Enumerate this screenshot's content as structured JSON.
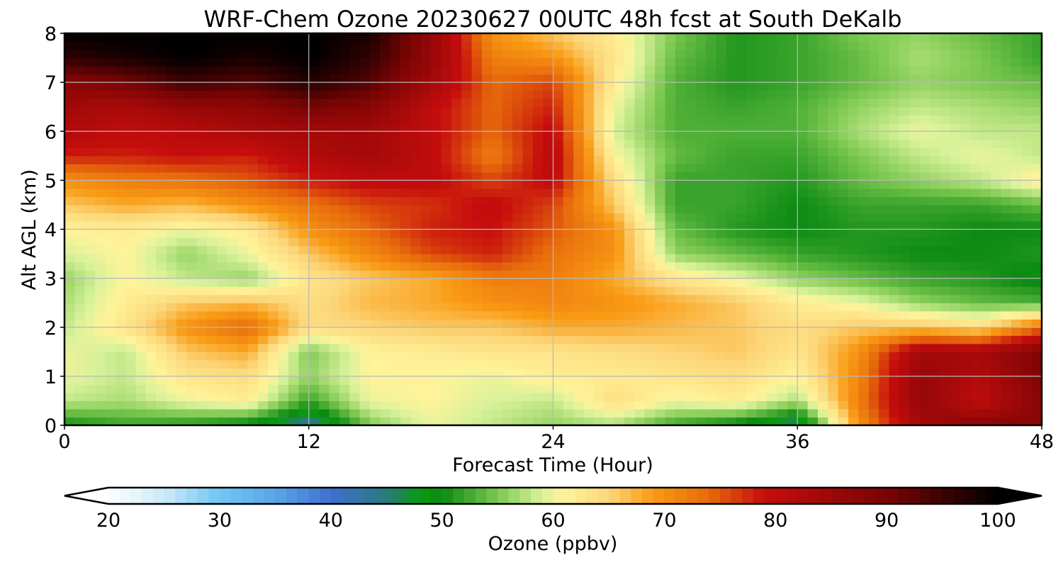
{
  "chart_data": {
    "type": "heatmap",
    "title": "WRF-Chem Ozone  20230627 00UTC 48h fcst at South DeKalb",
    "xlabel": "Forecast Time (Hour)",
    "ylabel": "Alt AGL (km)",
    "xlim": [
      0,
      48
    ],
    "ylim": [
      0,
      8
    ],
    "x_ticks": [
      0,
      12,
      24,
      36,
      48
    ],
    "y_ticks": [
      0,
      1,
      2,
      3,
      4,
      5,
      6,
      7,
      8
    ],
    "grid": true,
    "x": [
      0,
      3,
      6,
      9,
      12,
      15,
      18,
      21,
      24,
      27,
      30,
      33,
      36,
      39,
      42,
      45,
      48
    ],
    "y": [
      0,
      0.5,
      1,
      1.5,
      2,
      2.5,
      3,
      3.5,
      4,
      4.5,
      5,
      5.5,
      6,
      6.5,
      7,
      7.5,
      8
    ],
    "values": [
      [
        50,
        52,
        51,
        49,
        43,
        55,
        60,
        58,
        56,
        57,
        52,
        49,
        44,
        70,
        84,
        88,
        88
      ],
      [
        58,
        57,
        60,
        62,
        52,
        60,
        61,
        59,
        58,
        64,
        60,
        62,
        57,
        72,
        86,
        80,
        88
      ],
      [
        60,
        58,
        63,
        64,
        56,
        61,
        61,
        60,
        62,
        62,
        63,
        64,
        61,
        71,
        86,
        82,
        89
      ],
      [
        60,
        58,
        66,
        68,
        55,
        61,
        62,
        63,
        63,
        64,
        65,
        66,
        63,
        70,
        84,
        84,
        89
      ],
      [
        58,
        63,
        70,
        74,
        64,
        65,
        66,
        66,
        68,
        68,
        67,
        66,
        64,
        66,
        66,
        64,
        74
      ],
      [
        57,
        62,
        66,
        67,
        64,
        67,
        68,
        70,
        71,
        70,
        68,
        66,
        62,
        60,
        56,
        54,
        53
      ],
      [
        56,
        61,
        58,
        56,
        63,
        66,
        68,
        72,
        72,
        68,
        63,
        60,
        56,
        54,
        52,
        51,
        49
      ],
      [
        59,
        61,
        56,
        60,
        66,
        71,
        76,
        78,
        73,
        70,
        56,
        54,
        52,
        51,
        50,
        50,
        51
      ],
      [
        61,
        62,
        60,
        62,
        70,
        74,
        78,
        79,
        75,
        70,
        54,
        51,
        50,
        51,
        51,
        50,
        50
      ],
      [
        66,
        68,
        67,
        70,
        73,
        76,
        77,
        80,
        76,
        66,
        52,
        52,
        50,
        52,
        52,
        52,
        54
      ],
      [
        70,
        72,
        73,
        75,
        78,
        80,
        80,
        76,
        80,
        64,
        52,
        52,
        51,
        54,
        56,
        58,
        62
      ],
      [
        78,
        78,
        79,
        78,
        82,
        84,
        80,
        72,
        81,
        61,
        54,
        52,
        52,
        55,
        58,
        60,
        58
      ],
      [
        82,
        80,
        81,
        83,
        84,
        84,
        80,
        74,
        80,
        59,
        53,
        53,
        53,
        57,
        60,
        58,
        58
      ],
      [
        84,
        83,
        86,
        87,
        90,
        88,
        80,
        74,
        78,
        60,
        53,
        52,
        53,
        56,
        58,
        57,
        56
      ],
      [
        88,
        90,
        95,
        93,
        97,
        93,
        84,
        74,
        76,
        62,
        53,
        51,
        52,
        54,
        56,
        55,
        54
      ],
      [
        96,
        98,
        100,
        98,
        100,
        96,
        86,
        72,
        70,
        63,
        54,
        51,
        52,
        54,
        57,
        55,
        52
      ],
      [
        100,
        100,
        100,
        100,
        100,
        98,
        86,
        70,
        66,
        62,
        55,
        51,
        52,
        55,
        56,
        54,
        52
      ]
    ],
    "colorbar": {
      "label": "Ozone  (ppbv)",
      "ticks": [
        20,
        30,
        40,
        50,
        60,
        70,
        80,
        90,
        100
      ],
      "range": [
        20,
        100
      ],
      "extend": "both",
      "colors": [
        [
          20,
          "#ffffff"
        ],
        [
          25,
          "#cce9f8"
        ],
        [
          30,
          "#6fc7f5"
        ],
        [
          35,
          "#5aa6e6"
        ],
        [
          40,
          "#3f6fd1"
        ],
        [
          45,
          "#2a7a80"
        ],
        [
          48,
          "#0a9a10"
        ],
        [
          50,
          "#0c8a12"
        ],
        [
          55,
          "#7cc850"
        ],
        [
          59,
          "#d9f29a"
        ],
        [
          61,
          "#fff39a"
        ],
        [
          65,
          "#fcd679"
        ],
        [
          69,
          "#f99b14"
        ],
        [
          74,
          "#e76a0c"
        ],
        [
          79,
          "#c60d0d"
        ],
        [
          90,
          "#7a0404"
        ],
        [
          100,
          "#000000"
        ]
      ]
    }
  }
}
